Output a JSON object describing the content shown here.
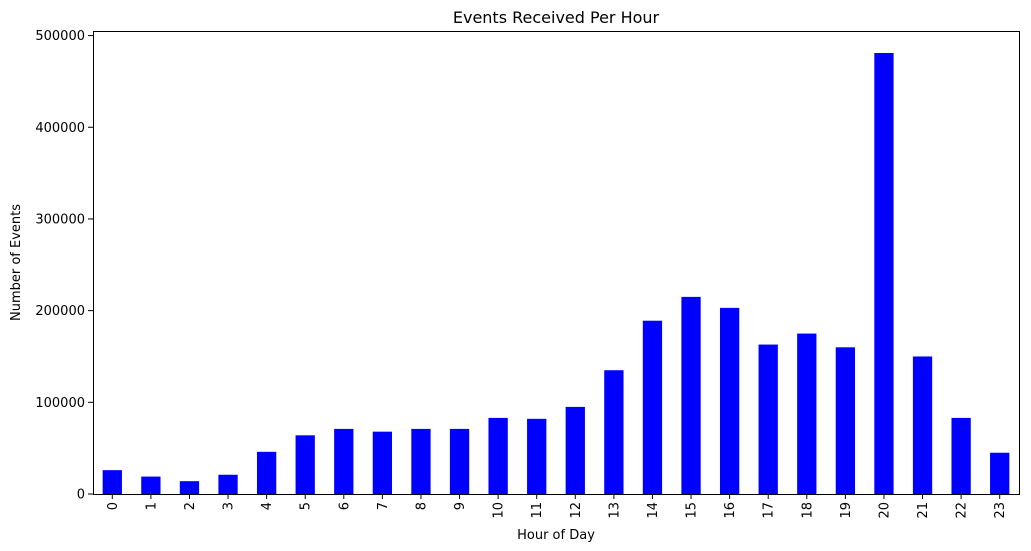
{
  "chart_data": {
    "type": "bar",
    "title": "Events Received Per Hour",
    "xlabel": "Hour of Day",
    "ylabel": "Number of Events",
    "categories": [
      "0",
      "1",
      "2",
      "3",
      "4",
      "5",
      "6",
      "7",
      "8",
      "9",
      "10",
      "11",
      "12",
      "13",
      "14",
      "15",
      "16",
      "17",
      "18",
      "19",
      "20",
      "21",
      "22",
      "23"
    ],
    "values": [
      26000,
      19000,
      14000,
      21000,
      46000,
      64000,
      71000,
      68000,
      71000,
      71000,
      83000,
      82000,
      95000,
      135000,
      189000,
      215000,
      203000,
      163000,
      175000,
      160000,
      481000,
      150000,
      83000,
      45000
    ],
    "ylim": [
      0,
      505000
    ],
    "yticks": [
      "0",
      "100000",
      "200000",
      "300000",
      "400000",
      "500000"
    ],
    "bar_color": "#0000ff",
    "grid": false,
    "xtick_rotation": "vertical"
  }
}
